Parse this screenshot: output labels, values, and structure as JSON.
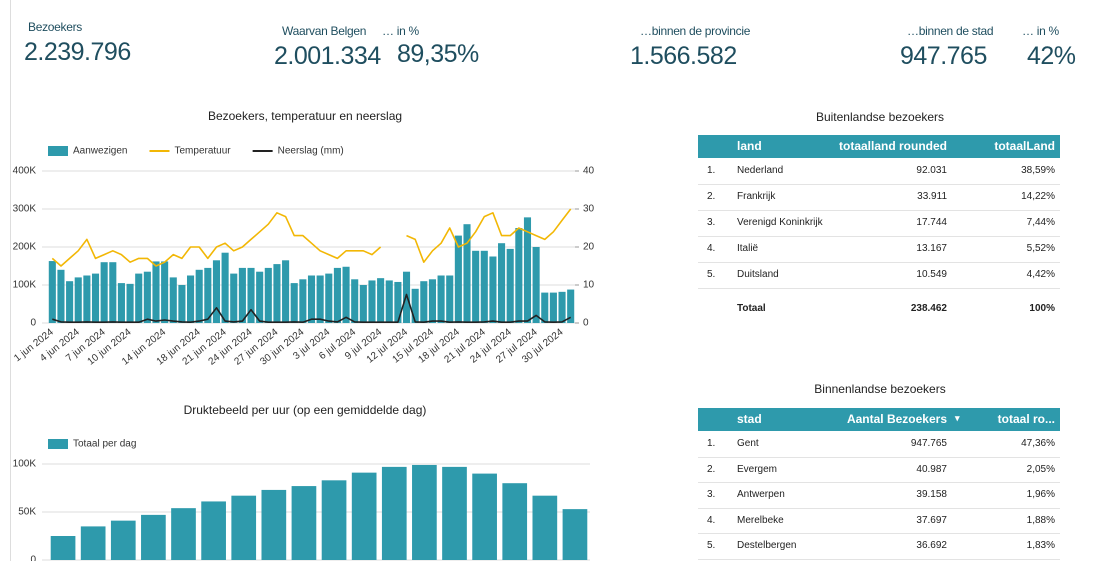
{
  "kpis": [
    {
      "label": "Bezoekers",
      "value": "2.239.796"
    },
    {
      "label": "Waarvan Belgen",
      "value": "2.001.334"
    },
    {
      "label": "… in %",
      "value": "89,35%"
    },
    {
      "label": "…binnen de provincie",
      "value": "1.566.582"
    },
    {
      "label": "…binnen de stad",
      "value": "947.765"
    },
    {
      "label": "… in %",
      "value": "42%"
    }
  ],
  "chart_data": [
    {
      "type": "combo",
      "title": "Bezoekers, temperatuur en neerslag",
      "categories": [
        "1 jun 2024",
        null,
        null,
        "4 jun 2024",
        null,
        null,
        "7 jun 2024",
        null,
        null,
        "10 jun 2024",
        null,
        null,
        null,
        "14 jun 2024",
        null,
        null,
        null,
        "18 jun 2024",
        null,
        null,
        "21 jun 2024",
        null,
        null,
        "24 jun 2024",
        null,
        null,
        "27 jun 2024",
        null,
        null,
        "30 jun 2024",
        null,
        null,
        "3 jul 2024",
        null,
        null,
        "6 jul 2024",
        null,
        null,
        "9 jul 2024",
        null,
        null,
        "12 jul 2024",
        null,
        null,
        "15 jul 2024",
        null,
        null,
        "18 jul 2024",
        null,
        null,
        "21 jul 2024",
        null,
        null,
        "24 jul 2024",
        null,
        null,
        "27 jul 2024",
        null,
        null,
        "30 jul 2024",
        null
      ],
      "series": [
        {
          "name": "Aanwezigen",
          "type": "bar",
          "color": "#2e9aac",
          "values": [
            163000,
            140000,
            110000,
            120000,
            125000,
            130000,
            160000,
            160000,
            105000,
            103000,
            130000,
            135000,
            162000,
            162000,
            120000,
            100000,
            125000,
            140000,
            145000,
            165000,
            185000,
            130000,
            145000,
            145000,
            135000,
            145000,
            155000,
            165000,
            105000,
            115000,
            125000,
            125000,
            130000,
            145000,
            148000,
            115000,
            100000,
            112000,
            118000,
            112000,
            108000,
            135000,
            90000,
            110000,
            115000,
            125000,
            125000,
            230000,
            260000,
            190000,
            190000,
            175000,
            210000,
            195000,
            250000,
            278000,
            200000,
            80000,
            80000,
            82000,
            88000
          ]
        },
        {
          "name": "Temperatuur",
          "type": "line",
          "axis": "y2",
          "color": "#f2b705",
          "values": [
            17,
            15,
            17,
            19,
            22,
            17,
            18,
            19,
            18,
            16,
            17,
            17,
            15,
            16,
            18,
            17,
            20,
            20,
            17,
            20,
            21,
            19,
            20,
            22,
            24,
            26,
            29,
            28,
            23,
            23,
            21,
            19,
            18,
            17,
            19,
            19,
            19,
            18,
            20,
            null,
            null,
            23,
            22,
            16,
            19,
            21,
            25,
            20,
            21,
            24,
            28,
            29,
            23,
            23,
            25,
            24,
            23,
            22,
            24,
            27,
            30
          ]
        },
        {
          "name": "Neerslag (mm)",
          "type": "line",
          "axis": "y2",
          "color": "#222222",
          "values": [
            1,
            0.3,
            0.2,
            0.2,
            0.3,
            0.2,
            0.2,
            0.3,
            0.2,
            0.2,
            0.2,
            1,
            0.5,
            0.8,
            0.5,
            0.3,
            0.2,
            0.5,
            1,
            4,
            0.5,
            0.3,
            0.5,
            3.5,
            0.5,
            0.2,
            0.2,
            0.2,
            0.3,
            0.2,
            1,
            1,
            0.5,
            0.3,
            1.5,
            0.3,
            0.2,
            0.2,
            0.2,
            0.2,
            0.2,
            7.5,
            0.3,
            0.2,
            0.5,
            0.5,
            0.2,
            0.3,
            0.2,
            0.2,
            0.3,
            0.5,
            0.2,
            0.2,
            0.5,
            0.5,
            2,
            0.3,
            0.2,
            0.3,
            1.5
          ]
        }
      ],
      "ylim": [
        0,
        400000
      ],
      "yticks": [
        0,
        {
          "value": 100000,
          "label": "100K"
        },
        {
          "value": 200000,
          "label": "200K"
        },
        {
          "value": 300000,
          "label": "300K"
        },
        {
          "value": 400000,
          "label": "400K"
        }
      ],
      "y2lim": [
        0,
        40
      ],
      "y2ticks": [
        0,
        10,
        20,
        30,
        40
      ],
      "grid": true
    },
    {
      "type": "bar",
      "title": "Druktebeeld per uur (op een gemiddelde dag)",
      "categories": [
        null,
        null,
        null,
        null,
        null,
        null,
        null,
        null,
        null,
        null,
        null,
        null,
        null,
        null,
        null,
        null,
        null,
        null
      ],
      "series": [
        {
          "name": "Totaal per dag",
          "type": "bar",
          "color": "#2e9aac",
          "values": [
            25000,
            35000,
            41000,
            47000,
            54000,
            61000,
            67000,
            73000,
            77000,
            83000,
            91000,
            97000,
            99000,
            97000,
            90000,
            80000,
            67000,
            53000
          ]
        }
      ],
      "ylim": [
        0,
        125000
      ],
      "yticks": [
        0,
        {
          "value": 50000,
          "label": "50K"
        },
        {
          "value": 100000,
          "label": "100K"
        }
      ],
      "grid": true
    }
  ],
  "tables": [
    {
      "title": "Buitenlandse bezoekers",
      "columns": [
        "land",
        "totaalland rounded",
        "totaalLand"
      ],
      "rows": [
        [
          "1.",
          "Nederland",
          "92.031",
          "38,59%"
        ],
        [
          "2.",
          "Frankrijk",
          "33.911",
          "14,22%"
        ],
        [
          "3.",
          "Verenigd Koninkrijk",
          "17.744",
          "7,44%"
        ],
        [
          "4.",
          "Italië",
          "13.167",
          "5,52%"
        ],
        [
          "5.",
          "Duitsland",
          "10.549",
          "4,42%"
        ]
      ],
      "total": [
        "Totaal",
        "238.462",
        "100%"
      ]
    },
    {
      "title": "Binnenlandse bezoekers",
      "columns": [
        "stad",
        "Aantal Bezoekers",
        "totaal ro..."
      ],
      "rows": [
        [
          "1.",
          "Gent",
          "947.765",
          "47,36%"
        ],
        [
          "2.",
          "Evergem",
          "40.987",
          "2,05%"
        ],
        [
          "3.",
          "Antwerpen",
          "39.158",
          "1,96%"
        ],
        [
          "4.",
          "Merelbeke",
          "37.697",
          "1,88%"
        ],
        [
          "5.",
          "Destelbergen",
          "36.692",
          "1,83%"
        ]
      ]
    }
  ]
}
